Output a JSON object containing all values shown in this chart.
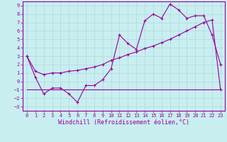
{
  "xlabel": "Windchill (Refroidissement éolien,°C)",
  "ylabel": "",
  "bg_color": "#c8eef0",
  "grid_color": "#b0d8dc",
  "line_color": "#990099",
  "xlim": [
    -0.5,
    23.5
  ],
  "ylim": [
    -3.5,
    9.5
  ],
  "xticks": [
    0,
    1,
    2,
    3,
    4,
    5,
    6,
    7,
    8,
    9,
    10,
    11,
    12,
    13,
    14,
    15,
    16,
    17,
    18,
    19,
    20,
    21,
    22,
    23
  ],
  "yticks": [
    -3,
    -2,
    -1,
    0,
    1,
    2,
    3,
    4,
    5,
    6,
    7,
    8,
    9
  ],
  "line1_x": [
    0,
    1,
    2,
    3,
    4,
    5,
    6,
    7,
    8,
    9,
    10,
    11,
    12,
    13,
    14,
    15,
    16,
    17,
    18,
    19,
    20,
    21,
    22,
    23
  ],
  "line1_y": [
    3.0,
    0.5,
    -1.5,
    -0.8,
    -0.8,
    -1.5,
    -2.5,
    -0.5,
    -0.5,
    0.2,
    1.5,
    5.5,
    4.5,
    3.8,
    7.2,
    8.0,
    7.5,
    9.2,
    8.5,
    7.5,
    7.8,
    7.8,
    5.5,
    2.0
  ],
  "line2_x": [
    0,
    1,
    2,
    3,
    4,
    5,
    6,
    7,
    8,
    9,
    10,
    11,
    12,
    13,
    14,
    15,
    16,
    17,
    18,
    19,
    20,
    21,
    22,
    23
  ],
  "line2_y": [
    3.0,
    1.2,
    0.8,
    1.0,
    1.0,
    1.2,
    1.3,
    1.5,
    1.7,
    2.0,
    2.5,
    2.8,
    3.2,
    3.5,
    3.9,
    4.2,
    4.6,
    5.0,
    5.5,
    6.0,
    6.5,
    7.0,
    7.3,
    -1.0
  ],
  "line3_x": [
    0,
    23
  ],
  "line3_y": [
    -1.0,
    -1.0
  ],
  "font_family": "monospace",
  "tick_fontsize": 5.0,
  "label_fontsize": 6.0
}
